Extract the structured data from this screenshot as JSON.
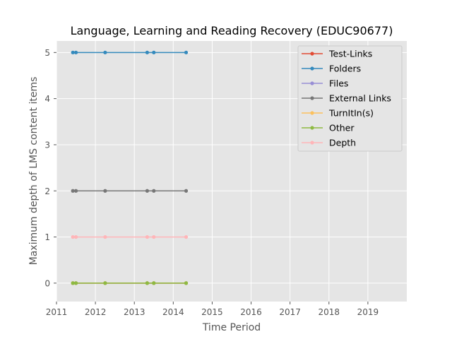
{
  "chart_data": {
    "type": "line",
    "title": "Language, Learning and Reading Recovery (EDUC90677)",
    "xlabel": "Time Period",
    "ylabel": "Maximum depth of LMS content items",
    "xlim": [
      2011,
      2020
    ],
    "ylim": [
      -0.4,
      5.25
    ],
    "x_ticks": [
      2011,
      2012,
      2013,
      2014,
      2015,
      2016,
      2017,
      2018,
      2019
    ],
    "x_tick_labels": [
      "2011",
      "2012",
      "2013",
      "2014",
      "2015",
      "2016",
      "2017",
      "2018",
      "2019"
    ],
    "y_ticks": [
      0,
      1,
      2,
      3,
      4,
      5
    ],
    "y_tick_labels": [
      "0",
      "1",
      "2",
      "3",
      "4",
      "5"
    ],
    "grid": true,
    "legend_position": "top-right",
    "x": [
      2011.42,
      2011.5,
      2012.25,
      2013.33,
      2013.5,
      2014.33
    ],
    "series": [
      {
        "name": "Test-Links",
        "color": "#E24A33",
        "values": [
          0,
          0,
          0,
          0,
          0,
          0
        ]
      },
      {
        "name": "Folders",
        "color": "#348ABD",
        "values": [
          5,
          5,
          5,
          5,
          5,
          5
        ]
      },
      {
        "name": "Files",
        "color": "#988ED5",
        "values": [
          0,
          0,
          0,
          0,
          0,
          0
        ]
      },
      {
        "name": "External Links",
        "color": "#777777",
        "values": [
          2,
          2,
          2,
          2,
          2,
          2
        ]
      },
      {
        "name": "TurnItIn(s)",
        "color": "#FBC15E",
        "values": [
          0,
          0,
          0,
          0,
          0,
          0
        ]
      },
      {
        "name": "Other",
        "color": "#8EBA42",
        "values": [
          0,
          0,
          0,
          0,
          0,
          0
        ]
      },
      {
        "name": "Depth",
        "color": "#FFB5B8",
        "values": [
          1,
          1,
          1,
          1,
          1,
          1
        ]
      }
    ]
  }
}
